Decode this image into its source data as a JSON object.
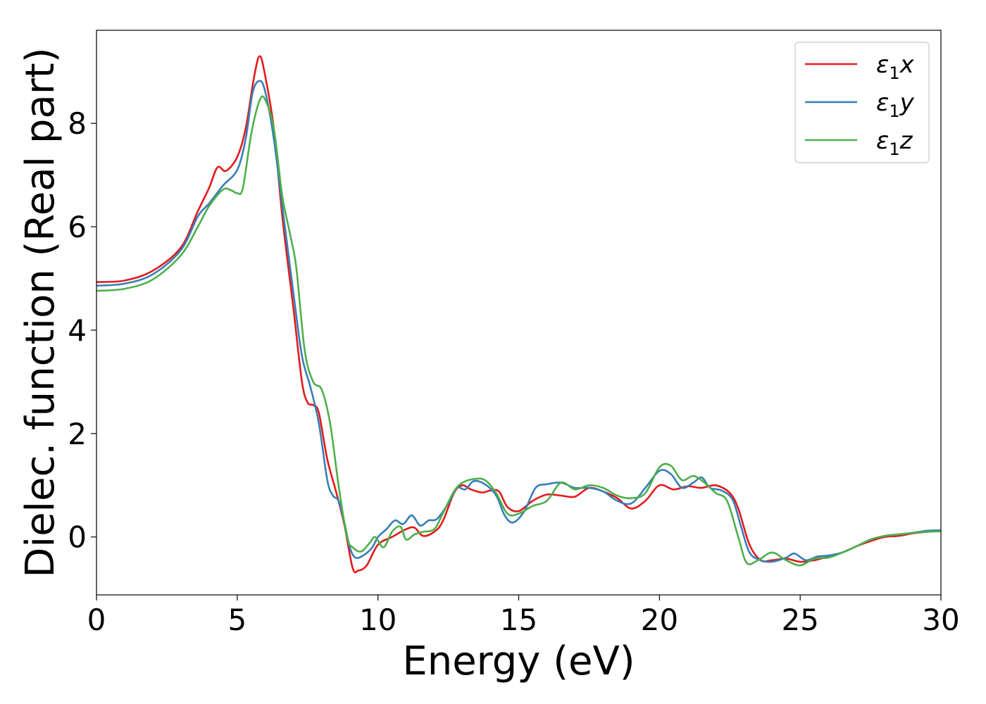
{
  "chart_data": {
    "type": "line",
    "title": "",
    "xlabel": "Energy (eV)",
    "ylabel": "Dielec. function (Real part)",
    "xlim": [
      0,
      30
    ],
    "ylim": [
      -1.12,
      9.8
    ],
    "xticks": [
      "0",
      "5",
      "10",
      "15",
      "20",
      "25",
      "30"
    ],
    "yticks": [
      "0",
      "2",
      "4",
      "6",
      "8"
    ],
    "grid": false,
    "legend_position": "top-right",
    "series": [
      {
        "name": "ε1x",
        "label_base": "ε",
        "label_sub": "1",
        "label_suffix": "x",
        "color": "#e41a1c",
        "points": [
          [
            0,
            4.93
          ],
          [
            1,
            4.96
          ],
          [
            2,
            5.15
          ],
          [
            3,
            5.6
          ],
          [
            3.6,
            6.3
          ],
          [
            4,
            6.75
          ],
          [
            4.3,
            7.15
          ],
          [
            4.6,
            7.08
          ],
          [
            5,
            7.35
          ],
          [
            5.3,
            7.9
          ],
          [
            5.6,
            8.9
          ],
          [
            5.8,
            9.3
          ],
          [
            6,
            8.9
          ],
          [
            6.3,
            7.9
          ],
          [
            6.6,
            6.2
          ],
          [
            7,
            4.4
          ],
          [
            7.3,
            3.0
          ],
          [
            7.5,
            2.6
          ],
          [
            7.7,
            2.55
          ],
          [
            7.9,
            2.4
          ],
          [
            8.2,
            1.5
          ],
          [
            8.5,
            0.9
          ],
          [
            8.8,
            0.25
          ],
          [
            9.1,
            -0.6
          ],
          [
            9.3,
            -0.65
          ],
          [
            9.6,
            -0.55
          ],
          [
            10,
            -0.15
          ],
          [
            10.5,
            0.0
          ],
          [
            11,
            0.15
          ],
          [
            11.3,
            0.18
          ],
          [
            11.6,
            0.02
          ],
          [
            12,
            0.1
          ],
          [
            12.3,
            0.3
          ],
          [
            12.7,
            0.85
          ],
          [
            13,
            1.0
          ],
          [
            13.3,
            0.92
          ],
          [
            13.7,
            0.86
          ],
          [
            14,
            0.9
          ],
          [
            14.3,
            0.88
          ],
          [
            14.6,
            0.58
          ],
          [
            15,
            0.5
          ],
          [
            15.5,
            0.7
          ],
          [
            16,
            0.82
          ],
          [
            16.5,
            0.8
          ],
          [
            17,
            0.78
          ],
          [
            17.5,
            0.95
          ],
          [
            18,
            0.88
          ],
          [
            18.5,
            0.75
          ],
          [
            19,
            0.55
          ],
          [
            19.5,
            0.7
          ],
          [
            20,
            1.0
          ],
          [
            20.5,
            0.92
          ],
          [
            21,
            0.98
          ],
          [
            21.5,
            0.95
          ],
          [
            22,
            1.0
          ],
          [
            22.5,
            0.85
          ],
          [
            22.8,
            0.55
          ],
          [
            23.2,
            -0.15
          ],
          [
            23.6,
            -0.45
          ],
          [
            24,
            -0.45
          ],
          [
            24.5,
            -0.42
          ],
          [
            25,
            -0.48
          ],
          [
            25.5,
            -0.45
          ],
          [
            26,
            -0.38
          ],
          [
            26.5,
            -0.3
          ],
          [
            27,
            -0.18
          ],
          [
            27.5,
            -0.08
          ],
          [
            28,
            0.0
          ],
          [
            28.5,
            0.02
          ],
          [
            29,
            0.07
          ],
          [
            29.5,
            0.1
          ],
          [
            30,
            0.12
          ]
        ]
      },
      {
        "name": "ε1y",
        "label_base": "ε",
        "label_sub": "1",
        "label_suffix": "y",
        "color": "#377eb8",
        "points": [
          [
            0,
            4.86
          ],
          [
            1,
            4.9
          ],
          [
            2,
            5.08
          ],
          [
            3,
            5.55
          ],
          [
            3.6,
            6.2
          ],
          [
            4,
            6.45
          ],
          [
            4.5,
            6.8
          ],
          [
            5,
            7.1
          ],
          [
            5.3,
            7.7
          ],
          [
            5.55,
            8.6
          ],
          [
            5.8,
            8.82
          ],
          [
            6,
            8.6
          ],
          [
            6.3,
            7.7
          ],
          [
            6.6,
            6.4
          ],
          [
            7,
            4.7
          ],
          [
            7.3,
            3.5
          ],
          [
            7.6,
            2.9
          ],
          [
            7.9,
            2.2
          ],
          [
            8.2,
            1.1
          ],
          [
            8.4,
            0.8
          ],
          [
            8.6,
            0.7
          ],
          [
            8.8,
            0.3
          ],
          [
            9,
            -0.2
          ],
          [
            9.2,
            -0.4
          ],
          [
            9.5,
            -0.35
          ],
          [
            9.8,
            -0.2
          ],
          [
            10,
            0.0
          ],
          [
            10.3,
            0.15
          ],
          [
            10.6,
            0.32
          ],
          [
            10.9,
            0.25
          ],
          [
            11.2,
            0.42
          ],
          [
            11.5,
            0.22
          ],
          [
            11.8,
            0.32
          ],
          [
            12.1,
            0.35
          ],
          [
            12.5,
            0.65
          ],
          [
            12.8,
            0.95
          ],
          [
            13.1,
            0.92
          ],
          [
            13.4,
            1.08
          ],
          [
            13.8,
            1.02
          ],
          [
            14.2,
            0.8
          ],
          [
            14.5,
            0.42
          ],
          [
            14.8,
            0.28
          ],
          [
            15.2,
            0.5
          ],
          [
            15.6,
            0.95
          ],
          [
            16,
            1.02
          ],
          [
            16.5,
            1.05
          ],
          [
            17,
            0.95
          ],
          [
            17.5,
            0.95
          ],
          [
            18,
            0.88
          ],
          [
            18.5,
            0.7
          ],
          [
            19,
            0.65
          ],
          [
            19.5,
            0.95
          ],
          [
            20,
            1.28
          ],
          [
            20.4,
            1.22
          ],
          [
            20.8,
            0.95
          ],
          [
            21.2,
            1.05
          ],
          [
            21.5,
            1.15
          ],
          [
            21.8,
            0.95
          ],
          [
            22.2,
            0.9
          ],
          [
            22.6,
            0.72
          ],
          [
            22.9,
            0.2
          ],
          [
            23.2,
            -0.3
          ],
          [
            23.6,
            -0.45
          ],
          [
            24,
            -0.48
          ],
          [
            24.5,
            -0.4
          ],
          [
            24.8,
            -0.32
          ],
          [
            25.2,
            -0.45
          ],
          [
            25.6,
            -0.38
          ],
          [
            26,
            -0.36
          ],
          [
            26.5,
            -0.3
          ],
          [
            27,
            -0.18
          ],
          [
            27.5,
            -0.05
          ],
          [
            28,
            0.02
          ],
          [
            28.5,
            0.05
          ],
          [
            29,
            0.08
          ],
          [
            29.5,
            0.12
          ],
          [
            30,
            0.13
          ]
        ]
      },
      {
        "name": "ε1z",
        "label_base": "ε",
        "label_sub": "1",
        "label_suffix": "z",
        "color": "#4daf4a",
        "points": [
          [
            0,
            4.76
          ],
          [
            1,
            4.8
          ],
          [
            2,
            4.98
          ],
          [
            3,
            5.45
          ],
          [
            3.6,
            6.0
          ],
          [
            4,
            6.4
          ],
          [
            4.5,
            6.72
          ],
          [
            4.8,
            6.7
          ],
          [
            5,
            6.65
          ],
          [
            5.2,
            6.75
          ],
          [
            5.5,
            7.8
          ],
          [
            5.8,
            8.45
          ],
          [
            6,
            8.45
          ],
          [
            6.3,
            7.9
          ],
          [
            6.6,
            6.6
          ],
          [
            6.9,
            5.8
          ],
          [
            7.1,
            5.2
          ],
          [
            7.4,
            3.6
          ],
          [
            7.7,
            3.0
          ],
          [
            8,
            2.85
          ],
          [
            8.3,
            2.2
          ],
          [
            8.6,
            1.0
          ],
          [
            8.9,
            0.0
          ],
          [
            9.1,
            -0.2
          ],
          [
            9.4,
            -0.28
          ],
          [
            9.7,
            -0.12
          ],
          [
            9.9,
            0.0
          ],
          [
            10.2,
            -0.2
          ],
          [
            10.5,
            0.1
          ],
          [
            10.8,
            0.2
          ],
          [
            11,
            -0.05
          ],
          [
            11.3,
            0.05
          ],
          [
            11.6,
            0.1
          ],
          [
            12,
            0.15
          ],
          [
            12.3,
            0.45
          ],
          [
            12.7,
            0.88
          ],
          [
            13,
            1.05
          ],
          [
            13.4,
            1.12
          ],
          [
            13.8,
            1.1
          ],
          [
            14.2,
            0.85
          ],
          [
            14.6,
            0.45
          ],
          [
            15,
            0.45
          ],
          [
            15.5,
            0.6
          ],
          [
            16,
            0.7
          ],
          [
            16.5,
            1.05
          ],
          [
            17,
            0.92
          ],
          [
            17.5,
            1.0
          ],
          [
            18,
            0.95
          ],
          [
            18.5,
            0.8
          ],
          [
            19,
            0.75
          ],
          [
            19.5,
            0.85
          ],
          [
            20,
            1.35
          ],
          [
            20.4,
            1.38
          ],
          [
            20.8,
            1.1
          ],
          [
            21.2,
            1.18
          ],
          [
            21.6,
            1.05
          ],
          [
            22,
            0.85
          ],
          [
            22.4,
            0.7
          ],
          [
            22.8,
            0.0
          ],
          [
            23.1,
            -0.5
          ],
          [
            23.5,
            -0.45
          ],
          [
            24,
            -0.3
          ],
          [
            24.5,
            -0.45
          ],
          [
            25,
            -0.55
          ],
          [
            25.5,
            -0.42
          ],
          [
            26,
            -0.4
          ],
          [
            26.5,
            -0.3
          ],
          [
            27,
            -0.18
          ],
          [
            27.5,
            -0.05
          ],
          [
            28,
            0.02
          ],
          [
            28.5,
            0.05
          ],
          [
            29,
            0.08
          ],
          [
            29.5,
            0.1
          ],
          [
            30,
            0.11
          ]
        ]
      }
    ]
  }
}
